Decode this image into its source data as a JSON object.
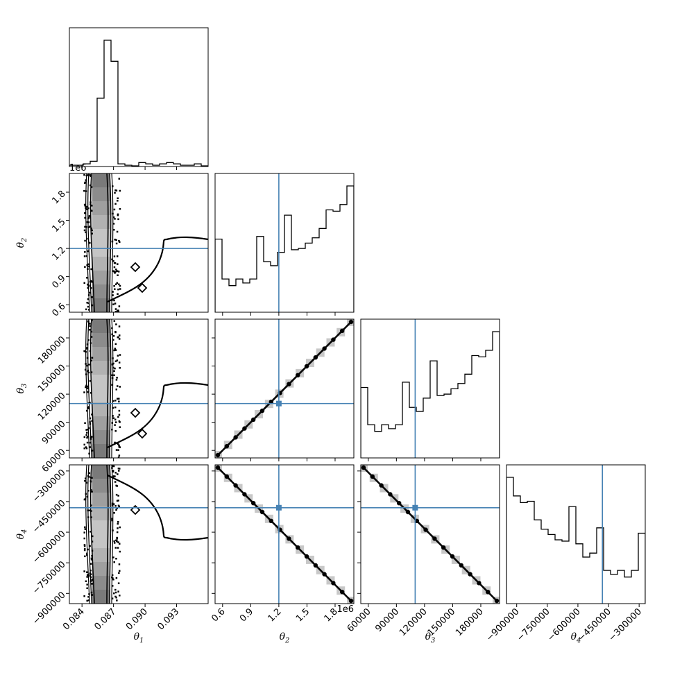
{
  "chart_data": {
    "type": "corner",
    "parameters": [
      {
        "label": "θ1",
        "sub": "1",
        "ticks": [
          0.084,
          0.087,
          0.09,
          0.093
        ],
        "tick_labels": [
          "0.084",
          "0.087",
          "0.090",
          "0.093"
        ],
        "range": [
          0.0828,
          0.096
        ],
        "truth": null
      },
      {
        "label": "θ2",
        "sub": "2",
        "ticks": [
          0.6,
          0.9,
          1.2,
          1.5,
          1.8
        ],
        "tick_labels": [
          "0.6",
          "0.9",
          "1.2",
          "1.5",
          "1.8"
        ],
        "range": [
          0.52,
          2.0
        ],
        "truth": 1.2,
        "offset": "1e6"
      },
      {
        "label": "θ3",
        "sub": "3",
        "ticks": [
          60000,
          90000,
          120000,
          150000,
          180000
        ],
        "tick_labels": [
          "60000",
          "90000",
          "120000",
          "150000",
          "180000"
        ],
        "range": [
          52000,
          200000
        ],
        "truth": 110000
      },
      {
        "label": "θ4",
        "sub": "4",
        "ticks": [
          -900000,
          -750000,
          -600000,
          -450000,
          -300000
        ],
        "tick_labels": [
          "−900000",
          "−750000",
          "−600000",
          "−450000",
          "−300000"
        ],
        "range": [
          -950000,
          -270000
        ],
        "truth": -480000
      }
    ],
    "histograms": [
      {
        "param": "θ1",
        "bins": [
          0.0828,
          0.096
        ],
        "counts": [
          1,
          1,
          2,
          4,
          52,
          96,
          80,
          2,
          1,
          0.5,
          3,
          2,
          1,
          2,
          3,
          2,
          1,
          1,
          2,
          0.5
        ]
      },
      {
        "param": "θ2",
        "bins": [
          0.52,
          2.0
        ],
        "counts": [
          55,
          25,
          20,
          25,
          22,
          25,
          57,
          38,
          35,
          45,
          73,
          47,
          48,
          52,
          56,
          63,
          77,
          76,
          81,
          95
        ]
      },
      {
        "param": "θ3",
        "bins": [
          52000,
          200000
        ],
        "counts": [
          53,
          25,
          20,
          25,
          22,
          25,
          57,
          38,
          35,
          45,
          73,
          47,
          48,
          52,
          56,
          63,
          77,
          76,
          81,
          95
        ]
      },
      {
        "param": "θ4",
        "bins": [
          -950000,
          -270000
        ],
        "counts": [
          95,
          81,
          76,
          77,
          63,
          56,
          52,
          48,
          47,
          73,
          45,
          35,
          38,
          57,
          25,
          22,
          25,
          20,
          25,
          53
        ]
      }
    ],
    "truth_color": "#4682b4",
    "grid": false
  }
}
